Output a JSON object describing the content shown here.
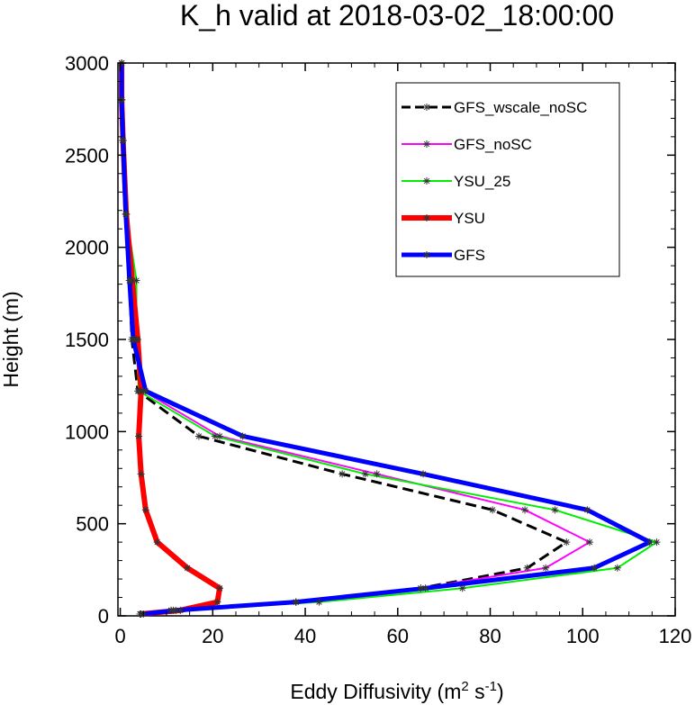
{
  "chart_data": {
    "type": "line",
    "title": "K_h valid at 2018-03-02_18:00:00",
    "xlabel": "Eddy Diffusivity (m",
    "xlabel_sup1": "2",
    "xlabel_mid": " s",
    "xlabel_sup2": "-1",
    "xlabel_end": ")",
    "ylabel": "Height (m)",
    "xlim": [
      -0.5,
      120
    ],
    "ylim": [
      0,
      3000
    ],
    "xticks": [
      0,
      20,
      40,
      60,
      80,
      100,
      120
    ],
    "yticks": [
      0,
      500,
      1000,
      1500,
      2000,
      2500,
      3000
    ],
    "xtick_labels": [
      "0",
      "20",
      "40",
      "60",
      "80",
      "100",
      "120"
    ],
    "ytick_labels": [
      "0",
      "500",
      "1000",
      "1500",
      "2000",
      "2500",
      "3000"
    ],
    "grid": false,
    "legend_position": "top-right",
    "series": [
      {
        "name": "GFS_wscale_noSC",
        "color": "#000000",
        "style": "dashed",
        "width": 3,
        "x": [
          4.3,
          11,
          38,
          65,
          88,
          96.5,
          80.5,
          48,
          17,
          3.8,
          2.5,
          2.0,
          1.2,
          0.6,
          0.3,
          0.3
        ],
        "y": [
          10,
          30,
          75,
          150,
          260,
          400,
          575,
          770,
          975,
          1220,
          1500,
          1820,
          2180,
          2580,
          2800,
          3000
        ]
      },
      {
        "name": "GFS_noSC",
        "color": "#ff00ff",
        "style": "solid",
        "width": 2,
        "x": [
          4.3,
          11,
          38,
          65,
          92,
          101.5,
          87.5,
          55.5,
          21.5,
          5.0,
          3.0,
          2.2,
          1.2,
          0.6,
          0.3,
          0.3
        ],
        "y": [
          10,
          30,
          75,
          150,
          260,
          400,
          575,
          770,
          975,
          1220,
          1500,
          1820,
          2180,
          2580,
          2800,
          3000
        ]
      },
      {
        "name": "YSU_25",
        "color": "#00ee00",
        "style": "solid",
        "width": 2,
        "x": [
          4.5,
          11.5,
          43,
          74,
          107.5,
          116,
          94,
          53,
          20.5,
          4.0,
          3.5,
          3.5,
          1.3,
          0.5,
          0.3,
          0.3
        ],
        "y": [
          10,
          30,
          75,
          150,
          260,
          400,
          575,
          770,
          975,
          1220,
          1500,
          1820,
          2180,
          2580,
          2800,
          3000
        ]
      },
      {
        "name": "YSU",
        "color": "#ff0000",
        "style": "solid",
        "width": 6,
        "x": [
          4.3,
          13,
          21,
          21.5,
          14.5,
          8,
          5.5,
          4.5,
          4.0,
          4.5,
          3.8,
          2.6,
          1.3,
          0.6,
          0.3,
          0.3
        ],
        "y": [
          10,
          30,
          75,
          150,
          260,
          400,
          575,
          770,
          975,
          1220,
          1500,
          1820,
          2180,
          2580,
          2800,
          3000
        ]
      },
      {
        "name": "GFS",
        "color": "#0000ff",
        "style": "solid",
        "width": 5,
        "x": [
          5.0,
          12,
          38,
          66,
          102.5,
          114.5,
          101,
          65.5,
          26.5,
          5.5,
          2.8,
          2.0,
          1.2,
          0.6,
          0.3,
          0.3
        ],
        "y": [
          10,
          30,
          75,
          150,
          260,
          400,
          575,
          770,
          975,
          1220,
          1500,
          1820,
          2180,
          2580,
          2800,
          3000
        ]
      }
    ]
  }
}
